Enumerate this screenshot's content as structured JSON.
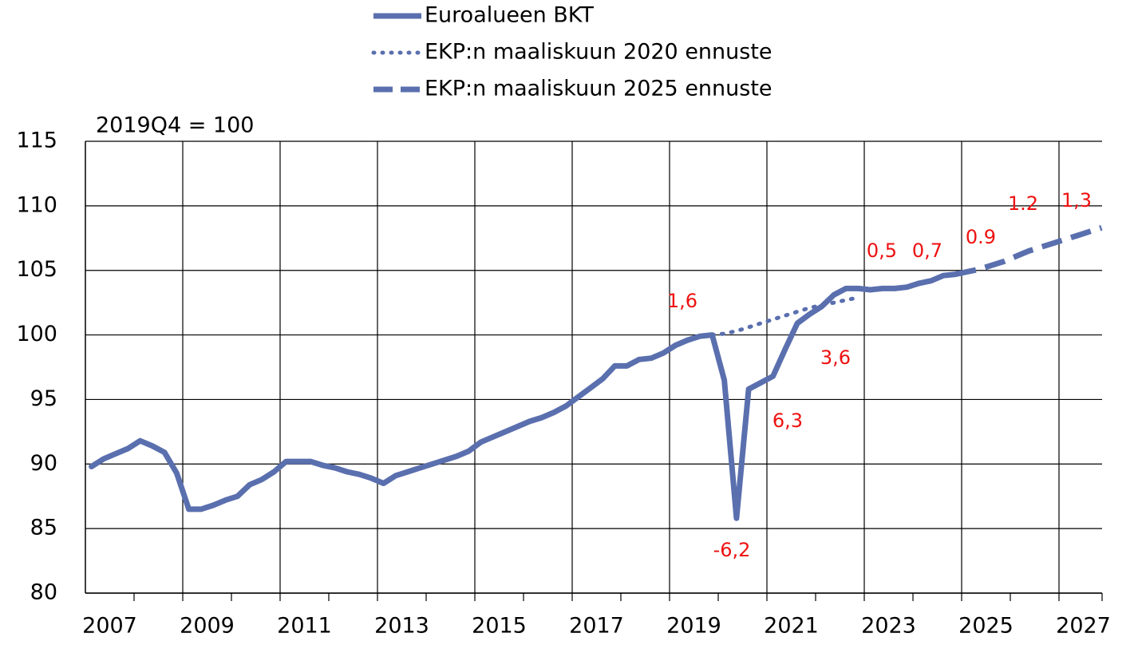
{
  "chart_data": {
    "type": "line",
    "subtitle": "2019Q4 = 100",
    "xlim": [
      2007,
      2028
    ],
    "xticks": [
      {
        "value": 2007.5,
        "label": "2007"
      },
      {
        "value": 2009.5,
        "label": "2009"
      },
      {
        "value": 2011.5,
        "label": "2011"
      },
      {
        "value": 2013.5,
        "label": "2013"
      },
      {
        "value": 2015.5,
        "label": "2015"
      },
      {
        "value": 2017.5,
        "label": "2017"
      },
      {
        "value": 2019.5,
        "label": "2019"
      },
      {
        "value": 2021.5,
        "label": "2021"
      },
      {
        "value": 2023.5,
        "label": "2023"
      },
      {
        "value": 2025.5,
        "label": "2025"
      },
      {
        "value": 2027.5,
        "label": "2027"
      }
    ],
    "xminorticks": [
      2008,
      2009,
      2010,
      2011,
      2012,
      2013,
      2014,
      2015,
      2016,
      2017,
      2018,
      2019,
      2020,
      2021,
      2022,
      2023,
      2024,
      2025,
      2026,
      2027,
      2028
    ],
    "xgrid": [
      2009,
      2011,
      2013,
      2015,
      2017,
      2019,
      2021,
      2023,
      2025,
      2027
    ],
    "ylim": [
      80,
      115
    ],
    "yticks": [
      80,
      85,
      90,
      95,
      100,
      105,
      110,
      115
    ],
    "grid": true,
    "legend": "top",
    "series": [
      {
        "name": "Euroalueen BKT",
        "color": "#5a6fae",
        "style": "solid",
        "x": [
          2007.125,
          2007.375,
          2007.625,
          2007.875,
          2008.125,
          2008.375,
          2008.625,
          2008.875,
          2009.125,
          2009.375,
          2009.625,
          2009.875,
          2010.125,
          2010.375,
          2010.625,
          2010.875,
          2011.125,
          2011.375,
          2011.625,
          2011.875,
          2012.125,
          2012.375,
          2012.625,
          2012.875,
          2013.125,
          2013.375,
          2013.625,
          2013.875,
          2014.125,
          2014.375,
          2014.625,
          2014.875,
          2015.125,
          2015.375,
          2015.625,
          2015.875,
          2016.125,
          2016.375,
          2016.625,
          2016.875,
          2017.125,
          2017.375,
          2017.625,
          2017.875,
          2018.125,
          2018.375,
          2018.625,
          2018.875,
          2019.125,
          2019.375,
          2019.625,
          2019.875,
          2020.125,
          2020.375,
          2020.625,
          2020.875,
          2021.125,
          2021.375,
          2021.625,
          2021.875,
          2022.125,
          2022.375,
          2022.625,
          2022.875,
          2023.125,
          2023.375,
          2023.625,
          2023.875,
          2024.125,
          2024.375,
          2024.625,
          2024.875
        ],
        "values": [
          89.8,
          90.4,
          90.8,
          91.2,
          91.8,
          91.4,
          90.9,
          89.3,
          86.5,
          86.5,
          86.8,
          87.2,
          87.5,
          88.4,
          88.8,
          89.4,
          90.2,
          90.2,
          90.2,
          89.9,
          89.7,
          89.4,
          89.2,
          88.9,
          88.5,
          89.1,
          89.4,
          89.7,
          90.0,
          90.3,
          90.6,
          91.0,
          91.7,
          92.1,
          92.5,
          92.9,
          93.3,
          93.6,
          94.0,
          94.5,
          95.2,
          95.9,
          96.6,
          97.6,
          97.6,
          98.1,
          98.2,
          98.6,
          99.2,
          99.6,
          99.9,
          100.0,
          96.5,
          85.8,
          95.8,
          96.3,
          96.8,
          98.9,
          100.9,
          101.6,
          102.2,
          103.1,
          103.6,
          103.6,
          103.5,
          103.6,
          103.6,
          103.7,
          104.0,
          104.2,
          104.6,
          104.7
        ]
      },
      {
        "name": "EKP:n maaliskuun 2020 ennuste",
        "color": "#5a6fae",
        "style": "dotted",
        "x": [
          2019.875,
          2020.125,
          2020.375,
          2020.625,
          2020.875,
          2021.125,
          2021.375,
          2021.625,
          2021.875,
          2022.125,
          2022.375,
          2022.625,
          2022.875
        ],
        "values": [
          100.0,
          100.1,
          100.3,
          100.6,
          100.9,
          101.2,
          101.5,
          101.8,
          102.1,
          102.3,
          102.5,
          102.7,
          102.9
        ]
      },
      {
        "name": "EKP:n maaliskuun 2025 ennuste",
        "color": "#5a6fae",
        "style": "dashed",
        "x": [
          2024.875,
          2025.125,
          2025.375,
          2025.625,
          2025.875,
          2026.125,
          2026.375,
          2026.625,
          2026.875,
          2027.125,
          2027.375,
          2027.625,
          2027.875
        ],
        "values": [
          104.7,
          104.9,
          105.1,
          105.4,
          105.7,
          106.1,
          106.5,
          106.8,
          107.1,
          107.4,
          107.7,
          108.0,
          108.3
        ]
      }
    ],
    "annotations": [
      "1,6",
      "-6,2",
      "6,3",
      "3,6",
      "0,5",
      "0,7",
      "0.9",
      "1.2",
      "1,3"
    ],
    "annotation_color": "#ee1111"
  }
}
